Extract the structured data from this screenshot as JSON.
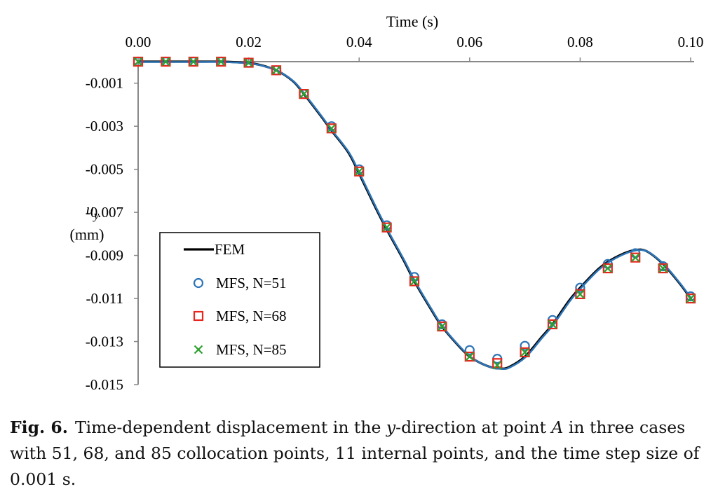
{
  "chart_data": {
    "type": "line",
    "title": "",
    "xlabel": "Time (s)",
    "ylabel_main": "u",
    "ylabel_sub": "y",
    "ylabel_unit": "(mm)",
    "x_axis_position": "top",
    "xlim": [
      0,
      0.1
    ],
    "ylim": [
      -0.015,
      0
    ],
    "x_ticks": [
      0,
      0.02,
      0.04,
      0.06,
      0.08,
      0.1
    ],
    "x_tick_labels": [
      "0.00",
      "0.02",
      "0.04",
      "0.06",
      "0.08",
      "0.10"
    ],
    "y_ticks": [
      -0.001,
      -0.003,
      -0.005,
      -0.007,
      -0.009,
      -0.011,
      -0.013,
      -0.015
    ],
    "y_tick_labels": [
      "-0.001",
      "-0.003",
      "-0.005",
      "-0.007",
      "-0.009",
      "-0.011",
      "-0.013",
      "-0.015"
    ],
    "grid": false,
    "legend_position": "bottom-left",
    "series": [
      {
        "name": "FEM",
        "style": "line",
        "color": "#000000",
        "x": [
          0,
          0.005,
          0.01,
          0.015,
          0.018,
          0.02,
          0.022,
          0.025,
          0.028,
          0.03,
          0.033,
          0.035,
          0.038,
          0.04,
          0.043,
          0.045,
          0.048,
          0.05,
          0.053,
          0.055,
          0.058,
          0.06,
          0.062,
          0.064,
          0.0655,
          0.067,
          0.07,
          0.073,
          0.075,
          0.078,
          0.08,
          0.083,
          0.085,
          0.088,
          0.09,
          0.092,
          0.095,
          0.098,
          0.1
        ],
        "y": [
          0,
          0,
          0,
          0,
          -3e-05,
          -7e-05,
          -0.00015,
          -0.0004,
          -0.0009,
          -0.0015,
          -0.0025,
          -0.0032,
          -0.0042,
          -0.0052,
          -0.0068,
          -0.0078,
          -0.0092,
          -0.0102,
          -0.0115,
          -0.0123,
          -0.0132,
          -0.0137,
          -0.014,
          -0.0142,
          -0.01425,
          -0.0142,
          -0.0137,
          -0.0128,
          -0.0122,
          -0.0111,
          -0.0105,
          -0.0097,
          -0.0093,
          -0.0089,
          -0.00875,
          -0.0088,
          -0.0094,
          -0.0103,
          -0.011
        ]
      },
      {
        "name": "MFS, N=51",
        "style": "circle",
        "color": "#2e75b6",
        "x": [
          0,
          0.005,
          0.01,
          0.015,
          0.02,
          0.025,
          0.03,
          0.035,
          0.04,
          0.045,
          0.05,
          0.055,
          0.06,
          0.065,
          0.07,
          0.075,
          0.08,
          0.085,
          0.09,
          0.095,
          0.1
        ],
        "y": [
          0,
          0,
          0,
          0,
          -5e-05,
          -0.0004,
          -0.0015,
          -0.003,
          -0.005,
          -0.0076,
          -0.01,
          -0.0122,
          -0.0134,
          -0.0138,
          -0.0132,
          -0.012,
          -0.0105,
          -0.0094,
          -0.0089,
          -0.0095,
          -0.0109
        ]
      },
      {
        "name": "MFS, N=68",
        "style": "square",
        "color": "#e8261e",
        "x": [
          0,
          0.005,
          0.01,
          0.015,
          0.02,
          0.025,
          0.03,
          0.035,
          0.04,
          0.045,
          0.05,
          0.055,
          0.06,
          0.065,
          0.07,
          0.075,
          0.08,
          0.085,
          0.09,
          0.095,
          0.1
        ],
        "y": [
          0,
          0,
          0,
          0,
          -5e-05,
          -0.0004,
          -0.0015,
          -0.0031,
          -0.0051,
          -0.0077,
          -0.0102,
          -0.0123,
          -0.0137,
          -0.014,
          -0.0135,
          -0.0122,
          -0.0108,
          -0.0096,
          -0.0091,
          -0.0096,
          -0.011
        ]
      },
      {
        "name": "MFS, N=85",
        "style": "cross",
        "color": "#2ca02c",
        "x": [
          0,
          0.005,
          0.01,
          0.015,
          0.02,
          0.025,
          0.03,
          0.035,
          0.04,
          0.045,
          0.05,
          0.055,
          0.06,
          0.065,
          0.07,
          0.075,
          0.08,
          0.085,
          0.09,
          0.095,
          0.1
        ],
        "y": [
          0,
          0,
          0,
          0,
          -5e-05,
          -0.0004,
          -0.0015,
          -0.0031,
          -0.0051,
          -0.0077,
          -0.0102,
          -0.0123,
          -0.0137,
          -0.0141,
          -0.0135,
          -0.0122,
          -0.0108,
          -0.0096,
          -0.0091,
          -0.0096,
          -0.011
        ]
      }
    ]
  },
  "caption": {
    "label": "Fig. 6.",
    "text_1": "Time-dependent displacement in the ",
    "var_y": "y",
    "text_2": "-direction at point ",
    "var_a": "A",
    "text_3": " in three cases with 51, 68, and 85 collocation points, 11 internal points, and the time step size of 0.001 s."
  }
}
